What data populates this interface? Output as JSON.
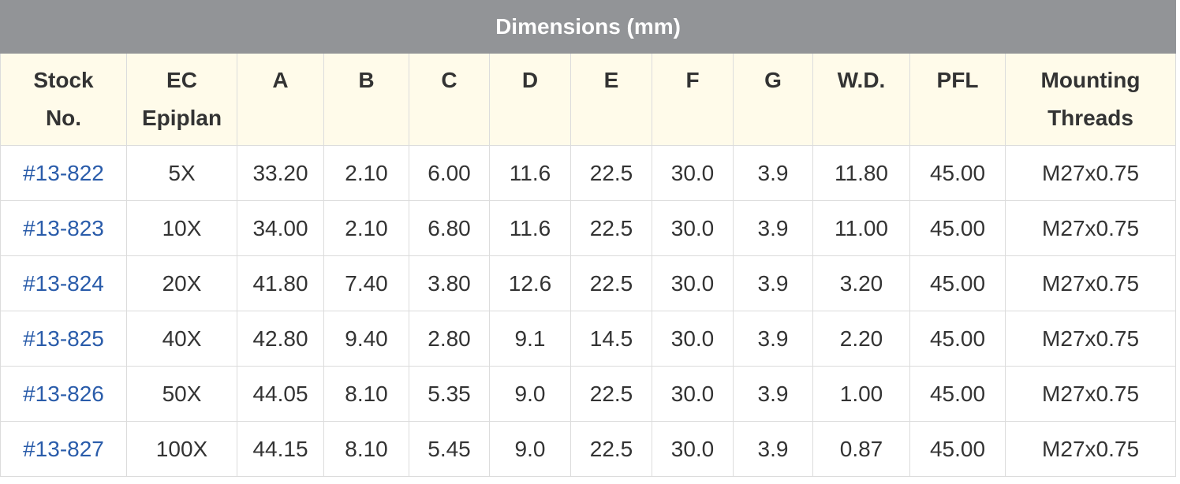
{
  "title": "Dimensions (mm)",
  "columns": [
    [
      "Stock",
      "No."
    ],
    [
      "EC",
      "Epiplan"
    ],
    [
      "A"
    ],
    [
      "B"
    ],
    [
      "C"
    ],
    [
      "D"
    ],
    [
      "E"
    ],
    [
      "F"
    ],
    [
      "G"
    ],
    [
      "W.D."
    ],
    [
      "PFL"
    ],
    [
      "Mounting",
      "Threads"
    ]
  ],
  "rows": [
    [
      "#13-822",
      "5X",
      "33.20",
      "2.10",
      "6.00",
      "11.6",
      "22.5",
      "30.0",
      "3.9",
      "11.80",
      "45.00",
      "M27x0.75"
    ],
    [
      "#13-823",
      "10X",
      "34.00",
      "2.10",
      "6.80",
      "11.6",
      "22.5",
      "30.0",
      "3.9",
      "11.00",
      "45.00",
      "M27x0.75"
    ],
    [
      "#13-824",
      "20X",
      "41.80",
      "7.40",
      "3.80",
      "12.6",
      "22.5",
      "30.0",
      "3.9",
      "3.20",
      "45.00",
      "M27x0.75"
    ],
    [
      "#13-825",
      "40X",
      "42.80",
      "9.40",
      "2.80",
      "9.1",
      "14.5",
      "30.0",
      "3.9",
      "2.20",
      "45.00",
      "M27x0.75"
    ],
    [
      "#13-826",
      "50X",
      "44.05",
      "8.10",
      "5.35",
      "9.0",
      "22.5",
      "30.0",
      "3.9",
      "1.00",
      "45.00",
      "M27x0.75"
    ],
    [
      "#13-827",
      "100X",
      "44.15",
      "8.10",
      "5.45",
      "9.0",
      "22.5",
      "30.0",
      "3.9",
      "0.87",
      "45.00",
      "M27x0.75"
    ]
  ]
}
